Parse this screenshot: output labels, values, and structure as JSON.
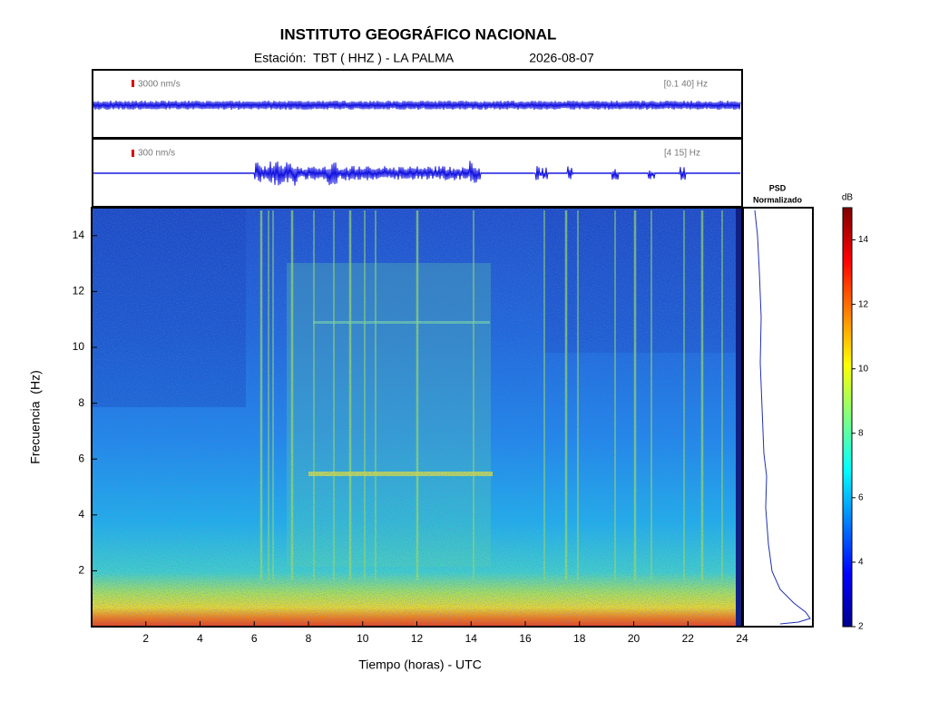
{
  "chart_data": {
    "type": "spectrogram",
    "title": "INSTITUTO GEOGRÁFICO NACIONAL",
    "subtitle": "Estación:  TBT ( HHZ ) - LA PALMA",
    "date": "2026-08-07",
    "xlabel": "Tiempo (horas) - UTC",
    "ylabel": "Frecuencia  (Hz)",
    "xlim": [
      0,
      24
    ],
    "xticks": [
      2,
      4,
      6,
      8,
      10,
      12,
      14,
      16,
      18,
      20,
      22,
      24
    ],
    "ylim": [
      0,
      15
    ],
    "yticks": [
      2,
      4,
      6,
      8,
      10,
      12,
      14
    ],
    "colorbar": {
      "label": "dB",
      "lim": [
        2,
        15
      ],
      "ticks": [
        2,
        4,
        6,
        8,
        10,
        12,
        14
      ]
    },
    "psd_label": "PSD",
    "psd_sublabel": "Normalizado",
    "traces": [
      {
        "scale": "3000 nm/s",
        "band": "[0.1 40] Hz"
      },
      {
        "scale": "300 nm/s",
        "band": "[4 15] Hz"
      }
    ]
  }
}
